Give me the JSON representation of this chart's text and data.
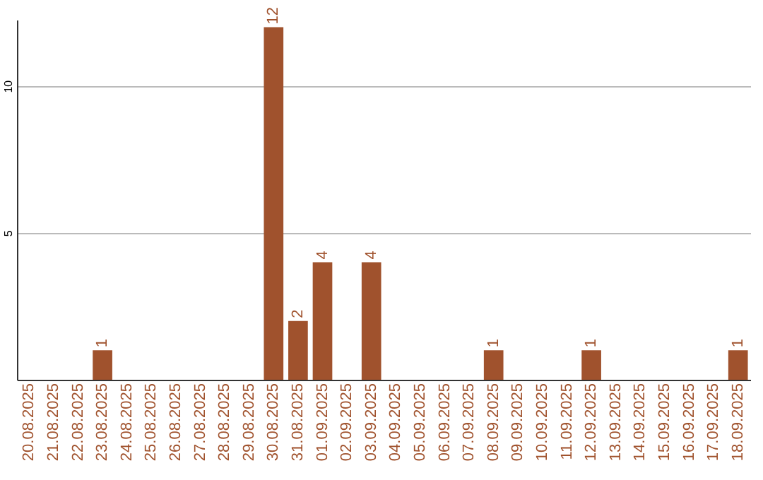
{
  "chart_data": {
    "type": "bar",
    "categories": [
      "20.08.2025",
      "21.08.2025",
      "22.08.2025",
      "23.08.2025",
      "24.08.2025",
      "25.08.2025",
      "26.08.2025",
      "27.08.2025",
      "28.08.2025",
      "29.08.2025",
      "30.08.2025",
      "31.08.2025",
      "01.09.2025",
      "02.09.2025",
      "03.09.2025",
      "04.09.2025",
      "05.09.2025",
      "06.09.2025",
      "07.09.2025",
      "08.09.2025",
      "09.09.2025",
      "10.09.2025",
      "11.09.2025",
      "12.09.2025",
      "13.09.2025",
      "14.09.2025",
      "15.09.2025",
      "16.09.2025",
      "17.09.2025",
      "18.09.2025"
    ],
    "values": [
      0,
      0,
      0,
      1,
      0,
      0,
      0,
      0,
      0,
      0,
      12,
      2,
      4,
      0,
      4,
      0,
      0,
      0,
      0,
      1,
      0,
      0,
      0,
      1,
      0,
      0,
      0,
      0,
      0,
      1
    ],
    "value_labels": [
      null,
      null,
      null,
      "1",
      null,
      null,
      null,
      null,
      null,
      null,
      "12",
      "2",
      "4",
      null,
      "4",
      null,
      null,
      null,
      null,
      "1",
      null,
      null,
      null,
      "1",
      null,
      null,
      null,
      null,
      null,
      "1"
    ],
    "color": "#a0522d",
    "ylim": [
      0,
      12.25
    ],
    "yticks": [
      5,
      10
    ],
    "grid": "y"
  }
}
